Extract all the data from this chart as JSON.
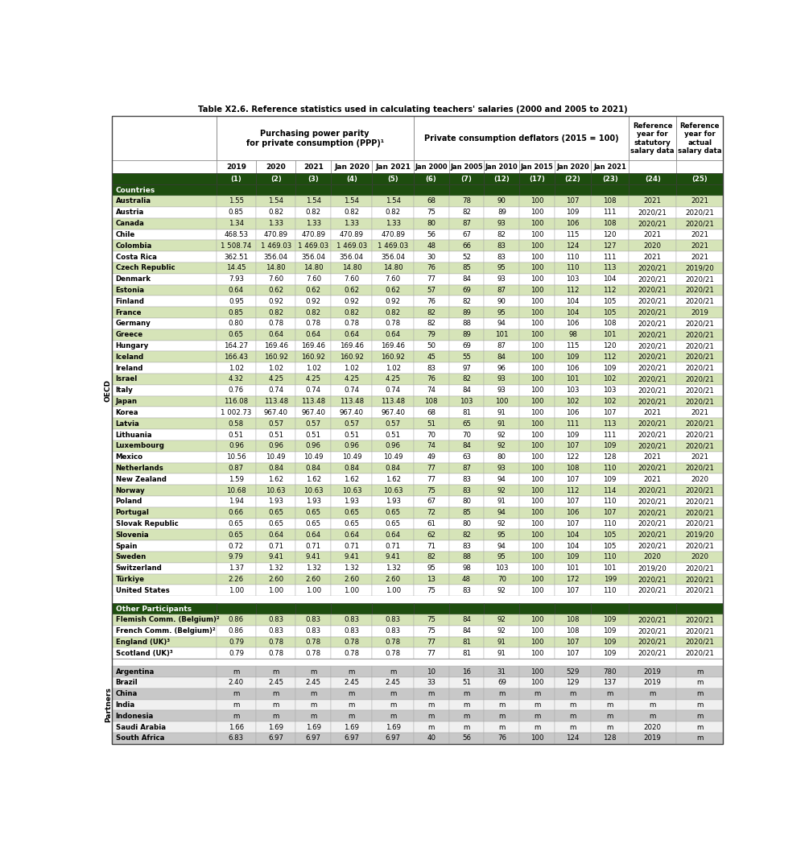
{
  "title": "Table X2.6. Reference statistics used in calculating teachers' salaries (2000 and 2005 to 2021)",
  "col_nums": [
    "",
    "(1)",
    "(2)",
    "(3)",
    "(4)",
    "(5)",
    "(6)",
    "(7)",
    "(12)",
    "(17)",
    "(22)",
    "(23)",
    "(24)",
    "(25)"
  ],
  "ppp_years": [
    "2019",
    "2020",
    "2021",
    "Jan 2020",
    "Jan 2021"
  ],
  "defl_years": [
    "Jan 2000",
    "Jan 2005",
    "Jan 2010",
    "Jan 2015",
    "Jan 2020",
    "Jan 2021"
  ],
  "ppp_header": "Purchasing power parity\nfor private consumption (PPP)¹",
  "defl_header": "Private consumption deflators (2015 = 100)",
  "ref_stat_header": "Reference\nyear for\nstatutory\nsalary data",
  "ref_act_header": "Reference\nyear for\nactual\nsalary data",
  "oecd_rows": [
    [
      "Australia",
      "1.55",
      "1.54",
      "1.54",
      "1.54",
      "1.54",
      "68",
      "78",
      "90",
      "100",
      "107",
      "108",
      "2021",
      "2021"
    ],
    [
      "Austria",
      "0.85",
      "0.82",
      "0.82",
      "0.82",
      "0.82",
      "75",
      "82",
      "89",
      "100",
      "109",
      "111",
      "2020/21",
      "2020/21"
    ],
    [
      "Canada",
      "1.34",
      "1.33",
      "1.33",
      "1.33",
      "1.33",
      "80",
      "87",
      "93",
      "100",
      "106",
      "108",
      "2020/21",
      "2020/21"
    ],
    [
      "Chile",
      "468.53",
      "470.89",
      "470.89",
      "470.89",
      "470.89",
      "56",
      "67",
      "82",
      "100",
      "115",
      "120",
      "2021",
      "2021"
    ],
    [
      "Colombia",
      "1 508.74",
      "1 469.03",
      "1 469.03",
      "1 469.03",
      "1 469.03",
      "48",
      "66",
      "83",
      "100",
      "124",
      "127",
      "2020",
      "2021"
    ],
    [
      "Costa Rica",
      "362.51",
      "356.04",
      "356.04",
      "356.04",
      "356.04",
      "30",
      "52",
      "83",
      "100",
      "110",
      "111",
      "2021",
      "2021"
    ],
    [
      "Czech Republic",
      "14.45",
      "14.80",
      "14.80",
      "14.80",
      "14.80",
      "76",
      "85",
      "95",
      "100",
      "110",
      "113",
      "2020/21",
      "2019/20"
    ],
    [
      "Denmark",
      "7.93",
      "7.60",
      "7.60",
      "7.60",
      "7.60",
      "77",
      "84",
      "93",
      "100",
      "103",
      "104",
      "2020/21",
      "2020/21"
    ],
    [
      "Estonia",
      "0.64",
      "0.62",
      "0.62",
      "0.62",
      "0.62",
      "57",
      "69",
      "87",
      "100",
      "112",
      "112",
      "2020/21",
      "2020/21"
    ],
    [
      "Finland",
      "0.95",
      "0.92",
      "0.92",
      "0.92",
      "0.92",
      "76",
      "82",
      "90",
      "100",
      "104",
      "105",
      "2020/21",
      "2020/21"
    ],
    [
      "France",
      "0.85",
      "0.82",
      "0.82",
      "0.82",
      "0.82",
      "82",
      "89",
      "95",
      "100",
      "104",
      "105",
      "2020/21",
      "2019"
    ],
    [
      "Germany",
      "0.80",
      "0.78",
      "0.78",
      "0.78",
      "0.78",
      "82",
      "88",
      "94",
      "100",
      "106",
      "108",
      "2020/21",
      "2020/21"
    ],
    [
      "Greece",
      "0.65",
      "0.64",
      "0.64",
      "0.64",
      "0.64",
      "79",
      "89",
      "101",
      "100",
      "98",
      "101",
      "2020/21",
      "2020/21"
    ],
    [
      "Hungary",
      "164.27",
      "169.46",
      "169.46",
      "169.46",
      "169.46",
      "50",
      "69",
      "87",
      "100",
      "115",
      "120",
      "2020/21",
      "2020/21"
    ],
    [
      "Iceland",
      "166.43",
      "160.92",
      "160.92",
      "160.92",
      "160.92",
      "45",
      "55",
      "84",
      "100",
      "109",
      "112",
      "2020/21",
      "2020/21"
    ],
    [
      "Ireland",
      "1.02",
      "1.02",
      "1.02",
      "1.02",
      "1.02",
      "83",
      "97",
      "96",
      "100",
      "106",
      "109",
      "2020/21",
      "2020/21"
    ],
    [
      "Israel",
      "4.32",
      "4.25",
      "4.25",
      "4.25",
      "4.25",
      "76",
      "82",
      "93",
      "100",
      "101",
      "102",
      "2020/21",
      "2020/21"
    ],
    [
      "Italy",
      "0.76",
      "0.74",
      "0.74",
      "0.74",
      "0.74",
      "74",
      "84",
      "93",
      "100",
      "103",
      "103",
      "2020/21",
      "2020/21"
    ],
    [
      "Japan",
      "116.08",
      "113.48",
      "113.48",
      "113.48",
      "113.48",
      "108",
      "103",
      "100",
      "100",
      "102",
      "102",
      "2020/21",
      "2020/21"
    ],
    [
      "Korea",
      "1 002.73",
      "967.40",
      "967.40",
      "967.40",
      "967.40",
      "68",
      "81",
      "91",
      "100",
      "106",
      "107",
      "2021",
      "2021"
    ],
    [
      "Latvia",
      "0.58",
      "0.57",
      "0.57",
      "0.57",
      "0.57",
      "51",
      "65",
      "91",
      "100",
      "111",
      "113",
      "2020/21",
      "2020/21"
    ],
    [
      "Lithuania",
      "0.51",
      "0.51",
      "0.51",
      "0.51",
      "0.51",
      "70",
      "70",
      "92",
      "100",
      "109",
      "111",
      "2020/21",
      "2020/21"
    ],
    [
      "Luxembourg",
      "0.96",
      "0.96",
      "0.96",
      "0.96",
      "0.96",
      "74",
      "84",
      "92",
      "100",
      "107",
      "109",
      "2020/21",
      "2020/21"
    ],
    [
      "Mexico",
      "10.56",
      "10.49",
      "10.49",
      "10.49",
      "10.49",
      "49",
      "63",
      "80",
      "100",
      "122",
      "128",
      "2021",
      "2021"
    ],
    [
      "Netherlands",
      "0.87",
      "0.84",
      "0.84",
      "0.84",
      "0.84",
      "77",
      "87",
      "93",
      "100",
      "108",
      "110",
      "2020/21",
      "2020/21"
    ],
    [
      "New Zealand",
      "1.59",
      "1.62",
      "1.62",
      "1.62",
      "1.62",
      "77",
      "83",
      "94",
      "100",
      "107",
      "109",
      "2021",
      "2020"
    ],
    [
      "Norway",
      "10.68",
      "10.63",
      "10.63",
      "10.63",
      "10.63",
      "75",
      "83",
      "92",
      "100",
      "112",
      "114",
      "2020/21",
      "2020/21"
    ],
    [
      "Poland",
      "1.94",
      "1.93",
      "1.93",
      "1.93",
      "1.93",
      "67",
      "80",
      "91",
      "100",
      "107",
      "110",
      "2020/21",
      "2020/21"
    ],
    [
      "Portugal",
      "0.66",
      "0.65",
      "0.65",
      "0.65",
      "0.65",
      "72",
      "85",
      "94",
      "100",
      "106",
      "107",
      "2020/21",
      "2020/21"
    ],
    [
      "Slovak Republic",
      "0.65",
      "0.65",
      "0.65",
      "0.65",
      "0.65",
      "61",
      "80",
      "92",
      "100",
      "107",
      "110",
      "2020/21",
      "2020/21"
    ],
    [
      "Slovenia",
      "0.65",
      "0.64",
      "0.64",
      "0.64",
      "0.64",
      "62",
      "82",
      "95",
      "100",
      "104",
      "105",
      "2020/21",
      "2019/20"
    ],
    [
      "Spain",
      "0.72",
      "0.71",
      "0.71",
      "0.71",
      "0.71",
      "71",
      "83",
      "94",
      "100",
      "104",
      "105",
      "2020/21",
      "2020/21"
    ],
    [
      "Sweden",
      "9.79",
      "9.41",
      "9.41",
      "9.41",
      "9.41",
      "82",
      "88",
      "95",
      "100",
      "109",
      "110",
      "2020",
      "2020"
    ],
    [
      "Switzerland",
      "1.37",
      "1.32",
      "1.32",
      "1.32",
      "1.32",
      "95",
      "98",
      "103",
      "100",
      "101",
      "101",
      "2019/20",
      "2020/21"
    ],
    [
      "Türkiye",
      "2.26",
      "2.60",
      "2.60",
      "2.60",
      "2.60",
      "13",
      "48",
      "70",
      "100",
      "172",
      "199",
      "2020/21",
      "2020/21"
    ],
    [
      "United States",
      "1.00",
      "1.00",
      "1.00",
      "1.00",
      "1.00",
      "75",
      "83",
      "92",
      "100",
      "107",
      "110",
      "2020/21",
      "2020/21"
    ]
  ],
  "op_rows": [
    [
      "Flemish Comm. (Belgium)²",
      "0.86",
      "0.83",
      "0.83",
      "0.83",
      "0.83",
      "75",
      "84",
      "92",
      "100",
      "108",
      "109",
      "2020/21",
      "2020/21"
    ],
    [
      "French Comm. (Belgium)²",
      "0.86",
      "0.83",
      "0.83",
      "0.83",
      "0.83",
      "75",
      "84",
      "92",
      "100",
      "108",
      "109",
      "2020/21",
      "2020/21"
    ],
    [
      "England (UK)³",
      "0.79",
      "0.78",
      "0.78",
      "0.78",
      "0.78",
      "77",
      "81",
      "91",
      "100",
      "107",
      "109",
      "2020/21",
      "2020/21"
    ],
    [
      "Scotland (UK)³",
      "0.79",
      "0.78",
      "0.78",
      "0.78",
      "0.78",
      "77",
      "81",
      "91",
      "100",
      "107",
      "109",
      "2020/21",
      "2020/21"
    ]
  ],
  "partner_rows": [
    [
      "Argentina",
      "m",
      "m",
      "m",
      "m",
      "m",
      "10",
      "16",
      "31",
      "100",
      "529",
      "780",
      "2019",
      "m"
    ],
    [
      "Brazil",
      "2.40",
      "2.45",
      "2.45",
      "2.45",
      "2.45",
      "33",
      "51",
      "69",
      "100",
      "129",
      "137",
      "2019",
      "m"
    ],
    [
      "China",
      "m",
      "m",
      "m",
      "m",
      "m",
      "m",
      "m",
      "m",
      "m",
      "m",
      "m",
      "m",
      "m"
    ],
    [
      "India",
      "m",
      "m",
      "m",
      "m",
      "m",
      "m",
      "m",
      "m",
      "m",
      "m",
      "m",
      "m",
      "m"
    ],
    [
      "Indonesia",
      "m",
      "m",
      "m",
      "m",
      "m",
      "m",
      "m",
      "m",
      "m",
      "m",
      "m",
      "m",
      "m"
    ],
    [
      "Saudi Arabia",
      "1.66",
      "1.69",
      "1.69",
      "1.69",
      "1.69",
      "m",
      "m",
      "m",
      "m",
      "m",
      "m",
      "2020",
      "m"
    ],
    [
      "South Africa",
      "6.83",
      "6.97",
      "6.97",
      "6.97",
      "6.97",
      "40",
      "56",
      "76",
      "100",
      "124",
      "128",
      "2019",
      "m"
    ]
  ],
  "colors": {
    "dark_green": "#1e4d0f",
    "light_green": "#d6e4b8",
    "white": "#ffffff",
    "light_gray": "#c8c8c8",
    "white2": "#f0f0f0",
    "border_dark": "#555555",
    "border_light": "#888888"
  }
}
